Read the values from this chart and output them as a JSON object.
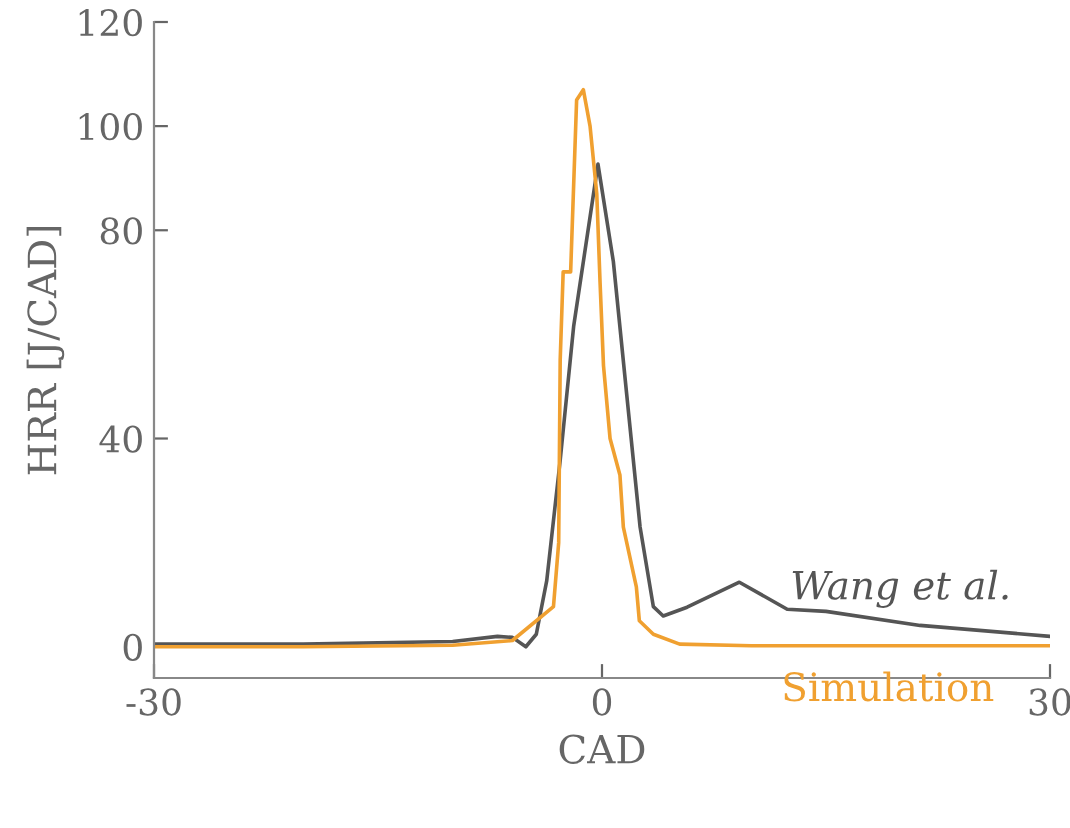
{
  "chart_data": {
    "type": "line",
    "xlabel": "CAD",
    "ylabel": "HRR [J/CAD]",
    "xlim": [
      -30,
      30
    ],
    "xticks": [
      -30,
      0,
      30
    ],
    "ylim": [
      -6,
      120
    ],
    "yticks": [
      0,
      40,
      80,
      100,
      120
    ],
    "grid": false,
    "legend": false,
    "marker": "none",
    "line_style": "solid",
    "series": [
      {
        "name": "Wang et al.",
        "color": "#555555",
        "x": [
          -30,
          -20,
          -10,
          -7,
          -6,
          -5.1,
          -4.4,
          -3.7,
          -2.8,
          -1.9,
          -0.27,
          0.76,
          1.65,
          2.55,
          3.44,
          4.1,
          5.7,
          9.2,
          12.4,
          15,
          21.3,
          30
        ],
        "values": [
          0.5,
          0.5,
          1,
          2,
          1.8,
          0,
          2.4,
          12.7,
          35.8,
          61.5,
          92.7,
          74,
          48.6,
          23,
          7.7,
          5.9,
          7.6,
          12.4,
          7.2,
          6.8,
          4.1,
          2
        ]
      },
      {
        "name": "Simulation",
        "color": "#f0a030",
        "x": [
          -30,
          -20,
          -10,
          -6,
          -3.25,
          -2.9,
          -2.8,
          -2.6,
          -2.1,
          -1.7,
          -1.25,
          -0.8,
          -0.35,
          -0.13,
          0.1,
          0.54,
          1.2,
          1.43,
          2.3,
          2.5,
          3.44,
          5.2,
          10,
          30
        ],
        "values": [
          0,
          0,
          0.3,
          1.2,
          7.7,
          20,
          55,
          72,
          72,
          105,
          107,
          100,
          87,
          70,
          54,
          40,
          33,
          23,
          11.5,
          5,
          2.4,
          0.5,
          0.2,
          0.2
        ]
      }
    ]
  }
}
